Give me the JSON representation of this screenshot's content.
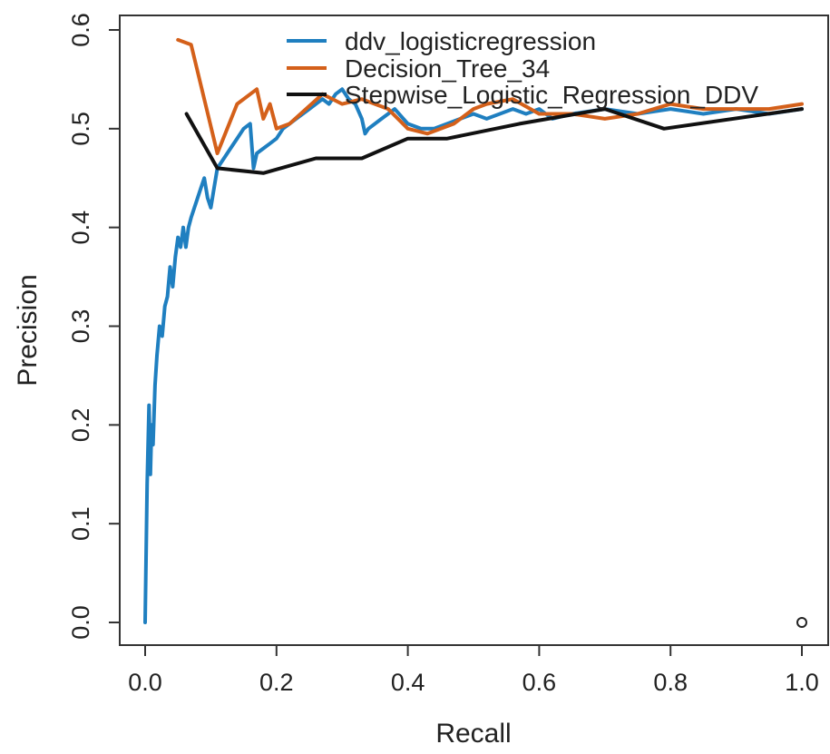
{
  "chart_data": {
    "type": "line",
    "title": "",
    "xlabel": "Recall",
    "ylabel": "Precision",
    "xlim": [
      0.0,
      1.0
    ],
    "ylim": [
      0.0,
      0.6
    ],
    "xticks": [
      "0.0",
      "0.2",
      "0.4",
      "0.6",
      "0.8",
      "1.0"
    ],
    "yticks": [
      "0.0",
      "0.1",
      "0.2",
      "0.3",
      "0.4",
      "0.5",
      "0.6"
    ],
    "legend_position": "top-right",
    "grid": false,
    "series": [
      {
        "name": "ddv_logisticregression",
        "color": "#1f7fc0",
        "x": [
          0.0,
          0.003,
          0.006,
          0.008,
          0.01,
          0.012,
          0.015,
          0.018,
          0.022,
          0.026,
          0.03,
          0.034,
          0.038,
          0.042,
          0.046,
          0.05,
          0.054,
          0.058,
          0.062,
          0.066,
          0.07,
          0.075,
          0.08,
          0.085,
          0.09,
          0.095,
          0.1,
          0.105,
          0.11,
          0.12,
          0.13,
          0.14,
          0.15,
          0.16,
          0.165,
          0.17,
          0.18,
          0.19,
          0.2,
          0.21,
          0.22,
          0.23,
          0.24,
          0.25,
          0.26,
          0.27,
          0.28,
          0.29,
          0.3,
          0.31,
          0.32,
          0.33,
          0.335,
          0.34,
          0.36,
          0.38,
          0.4,
          0.42,
          0.44,
          0.46,
          0.48,
          0.5,
          0.52,
          0.54,
          0.56,
          0.58,
          0.6,
          0.62,
          0.65,
          0.7,
          0.75,
          0.8,
          0.85,
          0.9,
          0.95,
          1.0
        ],
        "y": [
          0.0,
          0.14,
          0.22,
          0.15,
          0.2,
          0.18,
          0.24,
          0.27,
          0.3,
          0.29,
          0.32,
          0.33,
          0.36,
          0.34,
          0.37,
          0.39,
          0.38,
          0.4,
          0.38,
          0.4,
          0.41,
          0.42,
          0.43,
          0.44,
          0.45,
          0.43,
          0.42,
          0.44,
          0.46,
          0.47,
          0.48,
          0.49,
          0.5,
          0.505,
          0.46,
          0.475,
          0.48,
          0.485,
          0.49,
          0.5,
          0.505,
          0.51,
          0.515,
          0.52,
          0.525,
          0.53,
          0.525,
          0.535,
          0.54,
          0.53,
          0.525,
          0.51,
          0.495,
          0.5,
          0.51,
          0.52,
          0.505,
          0.5,
          0.5,
          0.505,
          0.51,
          0.515,
          0.51,
          0.515,
          0.52,
          0.515,
          0.52,
          0.51,
          0.515,
          0.52,
          0.515,
          0.52,
          0.515,
          0.52,
          0.515,
          0.52
        ]
      },
      {
        "name": "Decision_Tree_34",
        "color": "#d4601a",
        "x": [
          0.05,
          0.07,
          0.11,
          0.14,
          0.17,
          0.18,
          0.19,
          0.2,
          0.22,
          0.27,
          0.3,
          0.33,
          0.37,
          0.4,
          0.43,
          0.47,
          0.5,
          0.52,
          0.56,
          0.6,
          0.65,
          0.7,
          0.75,
          0.8,
          0.85,
          0.9,
          0.95,
          1.0
        ],
        "y": [
          0.59,
          0.585,
          0.475,
          0.525,
          0.54,
          0.51,
          0.525,
          0.5,
          0.505,
          0.535,
          0.525,
          0.53,
          0.52,
          0.5,
          0.495,
          0.505,
          0.52,
          0.525,
          0.53,
          0.515,
          0.515,
          0.51,
          0.515,
          0.525,
          0.52,
          0.52,
          0.52,
          0.525
        ]
      },
      {
        "name": "Stepwise_Logistic_Regression_DDV",
        "color": "#111111",
        "x": [
          0.063,
          0.11,
          0.18,
          0.26,
          0.33,
          0.4,
          0.46,
          0.57,
          0.7,
          0.79,
          1.0
        ],
        "y": [
          0.515,
          0.46,
          0.455,
          0.47,
          0.47,
          0.49,
          0.49,
          0.505,
          0.52,
          0.5,
          0.52
        ]
      }
    ],
    "extra_points": [
      {
        "x": 1.0,
        "y": 0.0,
        "marker": "open-circle",
        "color": "#222222"
      }
    ]
  }
}
